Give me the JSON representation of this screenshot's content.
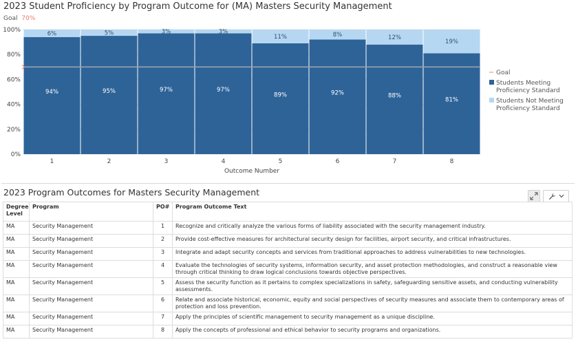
{
  "chart": {
    "title": "2023 Student Proficiency by Program Outcome for (MA) Masters Security Management",
    "goal_label": "Goal",
    "goal_value": "70%",
    "colors": {
      "meeting": "#2e6398",
      "not_meeting": "#b5d7f2",
      "goal": "#e9806f",
      "grid": "#e3e3e3"
    }
  },
  "chart_data": {
    "type": "bar",
    "stacked": true,
    "categories": [
      "1",
      "2",
      "3",
      "4",
      "5",
      "6",
      "7",
      "8"
    ],
    "series": [
      {
        "name": "Students Meeting Proficiency Standard",
        "values": [
          94,
          95,
          97,
          97,
          89,
          92,
          88,
          81
        ],
        "labels": [
          "94%",
          "95%",
          "97%",
          "97%",
          "89%",
          "92%",
          "88%",
          "81%"
        ]
      },
      {
        "name": "Students Not Meeting Proficiency Standard",
        "values": [
          6,
          5,
          3,
          3,
          11,
          8,
          12,
          19
        ],
        "labels": [
          "6%",
          "5%",
          "3%",
          "3%",
          "11%",
          "8%",
          "12%",
          "19%"
        ]
      }
    ],
    "goal": {
      "name": "Goal",
      "value": 70
    },
    "xlabel": "Outcome Number",
    "ylabel": "",
    "ylim": [
      0,
      100
    ],
    "yticks": [
      "0%",
      "20%",
      "40%",
      "60%",
      "80%",
      "100%"
    ],
    "grid": true,
    "legend": {
      "position": "right",
      "entries": [
        {
          "lines": [
            "Goal"
          ]
        },
        {
          "lines": [
            "Students Meeting",
            "Proficiency Standard"
          ]
        },
        {
          "lines": [
            "Students Not Meeting",
            "Proficiency Standard"
          ]
        }
      ]
    }
  },
  "table": {
    "title": "2023 Program Outcomes for Masters Security Management",
    "headers": {
      "degree": "Degree Level",
      "program": "Program",
      "po": "PO#",
      "text": "Program Outcome Text"
    },
    "rows": [
      {
        "degree": "MA",
        "program": "Security Management",
        "po": "1",
        "text": "Recognize and critically analyze the various forms of liability associated with the security management industry."
      },
      {
        "degree": "MA",
        "program": "Security Management",
        "po": "2",
        "text": "Provide cost-effective measures for architectural security design for facilities, airport security, and critical infrastructures."
      },
      {
        "degree": "MA",
        "program": "Security Management",
        "po": "3",
        "text": "Integrate and adapt security concepts and services from traditional approaches to address vulnerabilities to new technologies."
      },
      {
        "degree": "MA",
        "program": "Security Management",
        "po": "4",
        "text": "Evaluate the technologies of security systems, information security, and asset protection methodologies, and construct a reasonable view through critical thinking to draw logical conclusions towards objective perspectives."
      },
      {
        "degree": "MA",
        "program": "Security Management",
        "po": "5",
        "text": "Assess the security function as it pertains to complex specializations in safety, safeguarding sensitive assets, and conducting vulnerability assessments."
      },
      {
        "degree": "MA",
        "program": "Security Management",
        "po": "6",
        "text": "Relate and associate historical, economic, equity and social perspectives of security measures and associate them to contemporary areas of protection and loss prevention."
      },
      {
        "degree": "MA",
        "program": "Security Management",
        "po": "7",
        "text": "Apply the principles of scientific management to security management as a unique discipline."
      },
      {
        "degree": "MA",
        "program": "Security Management",
        "po": "8",
        "text": "Apply the concepts of professional and ethical behavior to security programs and organizations."
      }
    ]
  },
  "toolbar": {
    "expand_icon": "expand-arrows-icon",
    "wrench_icon": "wrench-icon",
    "dropdown_icon": "chevron-down-icon"
  }
}
